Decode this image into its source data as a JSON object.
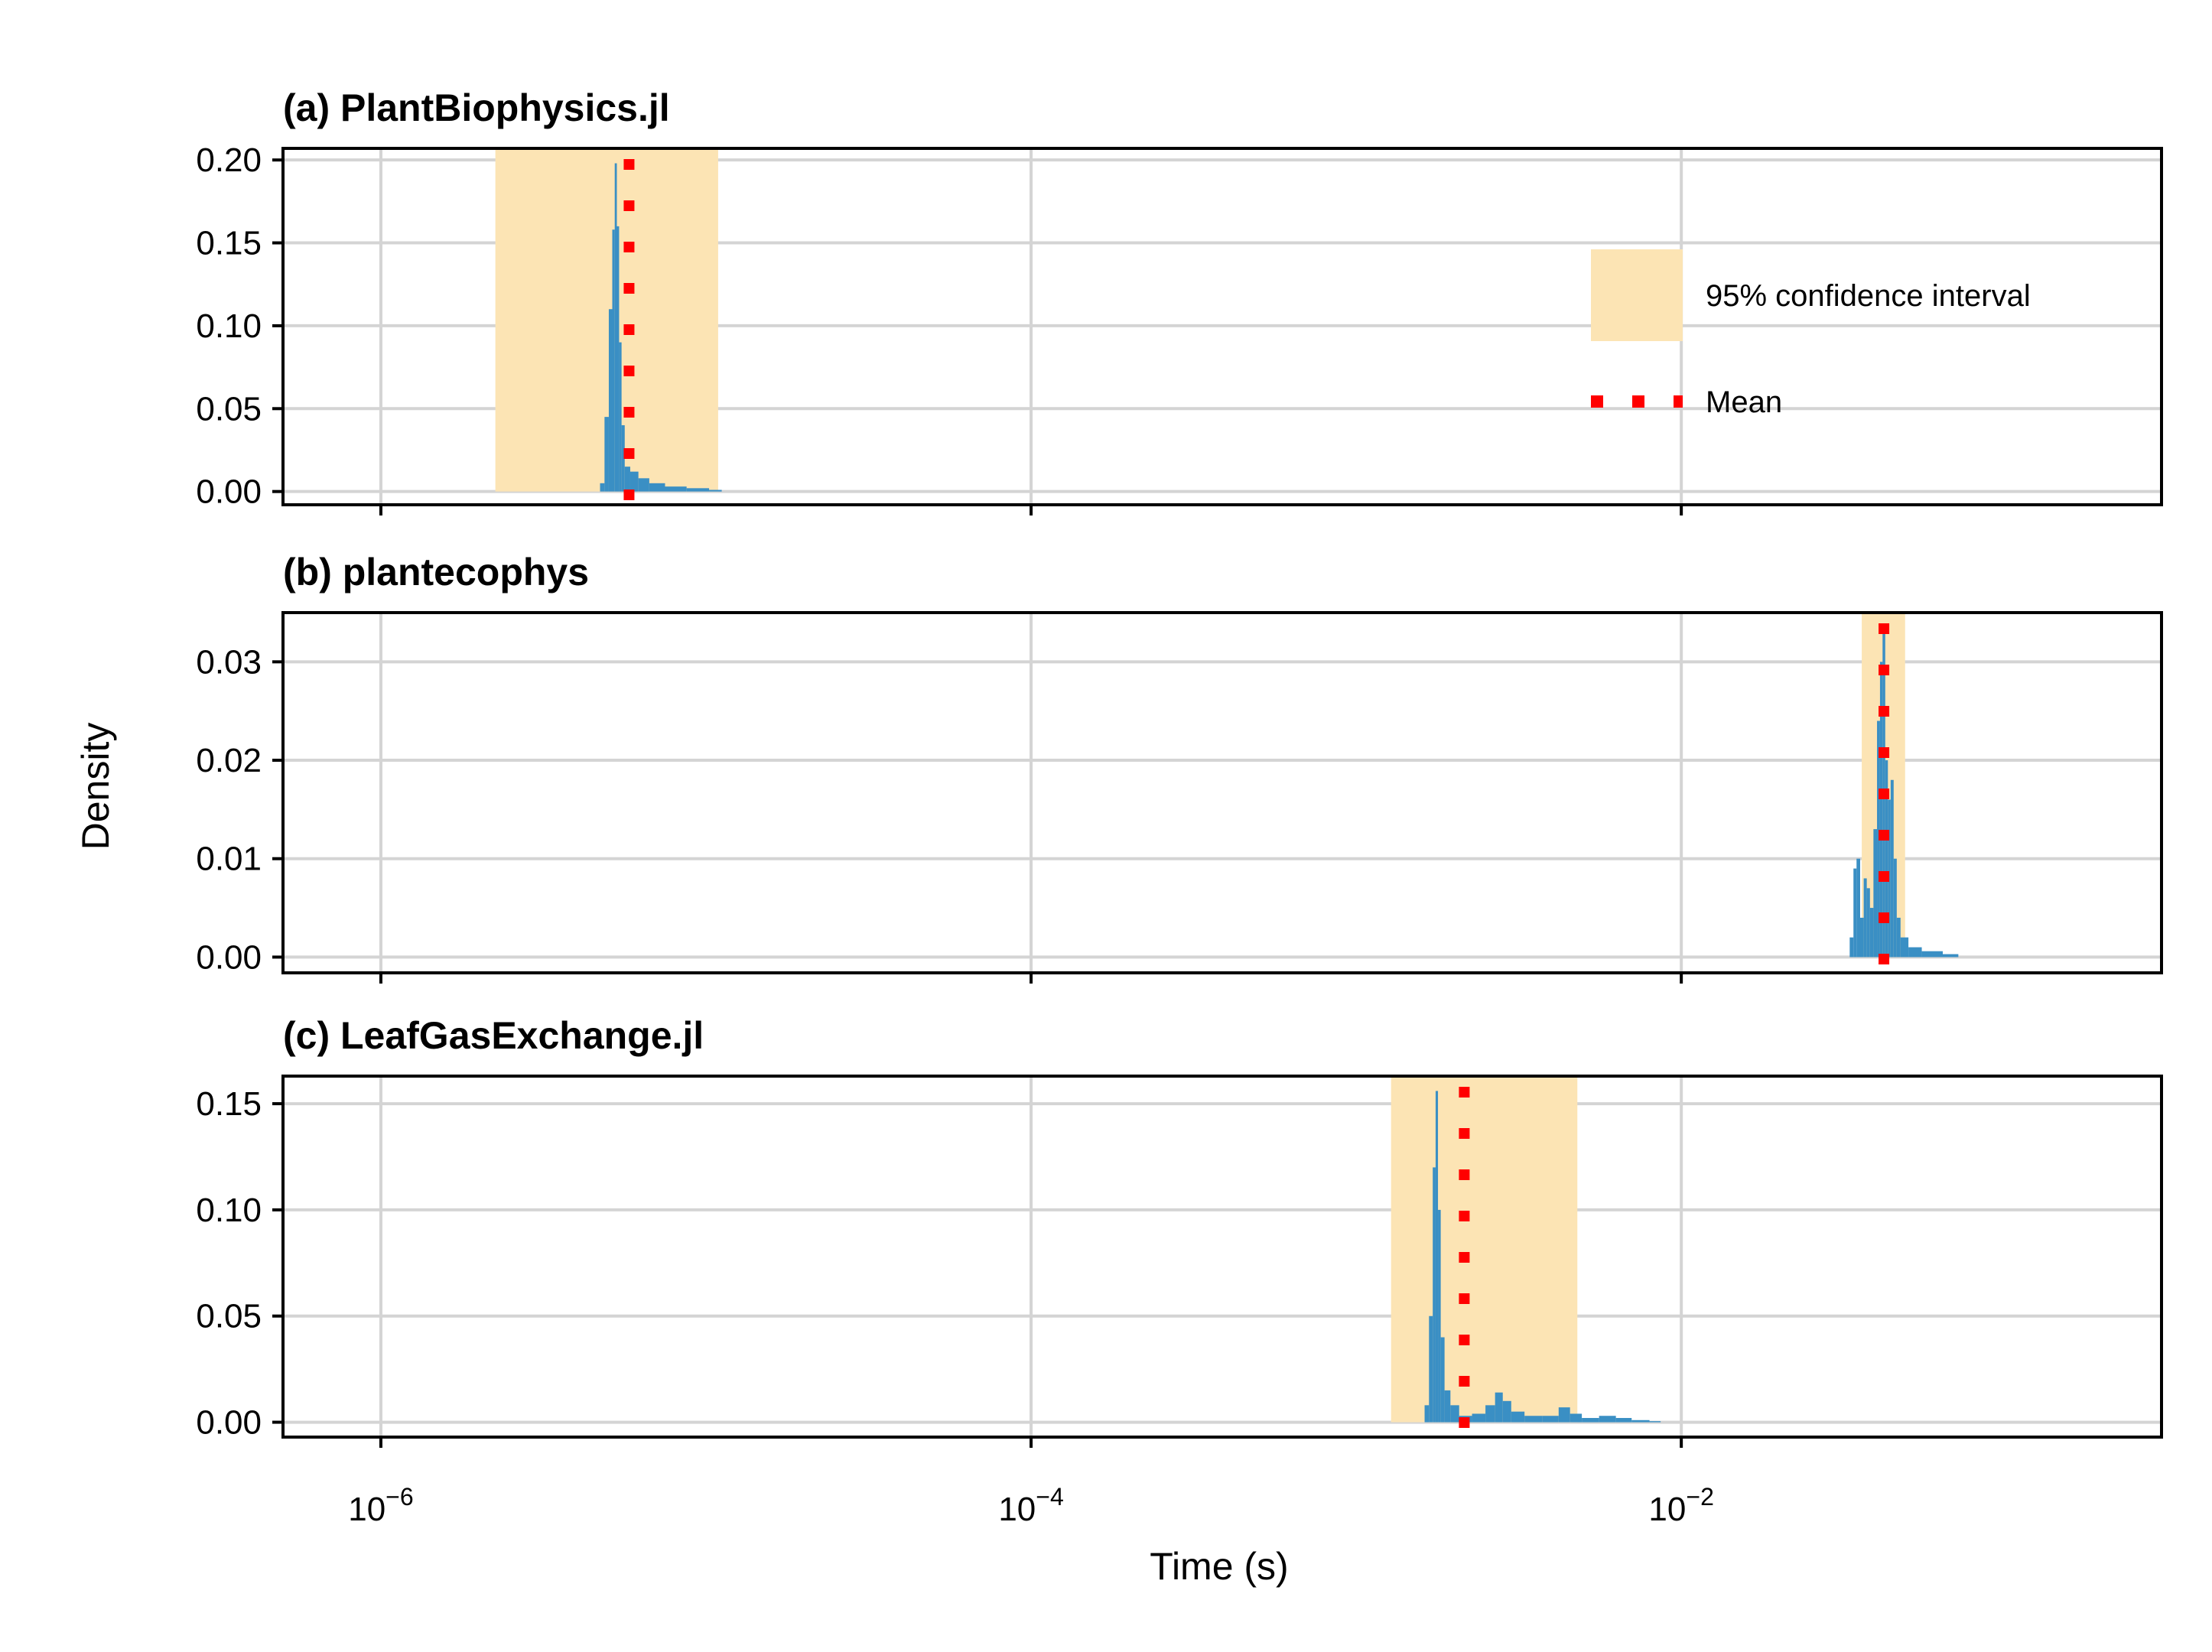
{
  "chart_data": {
    "type": "histogram",
    "xlabel": "Time (s)",
    "ylabel": "Density",
    "xscale": "log",
    "xlim": [
      5e-07,
      0.3
    ],
    "xticks": [
      {
        "value": 1e-06,
        "base": "10",
        "exp": "−6"
      },
      {
        "value": 0.0001,
        "base": "10",
        "exp": "−4"
      },
      {
        "value": 0.01,
        "base": "10",
        "exp": "−2"
      }
    ],
    "legend": {
      "position": "upper-right of panel (a)",
      "ci_label": "95% confidence interval",
      "mean_label": "Mean"
    },
    "colors": {
      "ci_fill": "#fce4b4",
      "histogram": "#3a8fc4",
      "mean_line": "#ff0000",
      "grid": "#d4d4d4"
    },
    "panels": [
      {
        "title": "(a) PlantBiophysics.jl",
        "ylim": [
          -0.008,
          0.207
        ],
        "yticks": [
          0.0,
          0.05,
          0.1,
          0.15,
          0.2
        ],
        "ytick_labels": [
          "0.00",
          "0.05",
          "0.10",
          "0.15",
          "0.20"
        ],
        "ci": [
          2.25e-06,
          1.09e-05
        ],
        "mean": 5.8e-06,
        "hist": [
          [
            4.8e-06,
            0.005
          ],
          [
            4.95e-06,
            0.045
          ],
          [
            5.1e-06,
            0.11
          ],
          [
            5.2e-06,
            0.158
          ],
          [
            5.28e-06,
            0.198
          ],
          [
            5.36e-06,
            0.16
          ],
          [
            5.45e-06,
            0.09
          ],
          [
            5.55e-06,
            0.04
          ],
          [
            5.7e-06,
            0.015
          ],
          [
            6e-06,
            0.012
          ],
          [
            6.4e-06,
            0.008
          ],
          [
            7e-06,
            0.005
          ],
          [
            8e-06,
            0.003
          ],
          [
            9.5e-06,
            0.002
          ],
          [
            1.1e-05,
            0.001
          ]
        ]
      },
      {
        "title": "(b) plantecophys",
        "ylim": [
          -0.0016,
          0.035
        ],
        "yticks": [
          0.0,
          0.01,
          0.02,
          0.03
        ],
        "ytick_labels": [
          "0.00",
          "0.01",
          "0.02",
          "0.03"
        ],
        "ci": [
          0.0359,
          0.0488
        ],
        "mean": 0.042,
        "hist": [
          [
            0.0335,
            0.002
          ],
          [
            0.0342,
            0.009
          ],
          [
            0.035,
            0.01
          ],
          [
            0.036,
            0.004
          ],
          [
            0.0368,
            0.008
          ],
          [
            0.0376,
            0.007
          ],
          [
            0.0385,
            0.005
          ],
          [
            0.0395,
            0.013
          ],
          [
            0.0405,
            0.024
          ],
          [
            0.0412,
            0.03
          ],
          [
            0.042,
            0.033
          ],
          [
            0.0428,
            0.02
          ],
          [
            0.0436,
            0.016
          ],
          [
            0.0445,
            0.018
          ],
          [
            0.0455,
            0.01
          ],
          [
            0.0465,
            0.004
          ],
          [
            0.048,
            0.002
          ],
          [
            0.052,
            0.001
          ],
          [
            0.058,
            0.0006
          ],
          [
            0.07,
            0.0003
          ]
        ]
      },
      {
        "title": "(c) LeafGasExchange.jl",
        "ylim": [
          -0.007,
          0.163
        ],
        "yticks": [
          0.0,
          0.05,
          0.1,
          0.15
        ],
        "ytick_labels": [
          "0.00",
          "0.05",
          "0.10",
          "0.15"
        ],
        "ci": [
          0.00128,
          0.00479
        ],
        "mean": 0.00215,
        "hist": [
          [
            0.00165,
            0.008
          ],
          [
            0.0017,
            0.05
          ],
          [
            0.00174,
            0.12
          ],
          [
            0.00177,
            0.156
          ],
          [
            0.0018,
            0.1
          ],
          [
            0.00184,
            0.04
          ],
          [
            0.0019,
            0.015
          ],
          [
            0.002,
            0.008
          ],
          [
            0.00215,
            0.003
          ],
          [
            0.0024,
            0.004
          ],
          [
            0.0026,
            0.008
          ],
          [
            0.00275,
            0.014
          ],
          [
            0.0029,
            0.01
          ],
          [
            0.0031,
            0.005
          ],
          [
            0.0035,
            0.003
          ],
          [
            0.004,
            0.003
          ],
          [
            0.0044,
            0.007
          ],
          [
            0.0047,
            0.004
          ],
          [
            0.0052,
            0.002
          ],
          [
            0.006,
            0.003
          ],
          [
            0.0066,
            0.002
          ],
          [
            0.0075,
            0.001
          ],
          [
            0.0085,
            0.0005
          ]
        ]
      }
    ]
  }
}
